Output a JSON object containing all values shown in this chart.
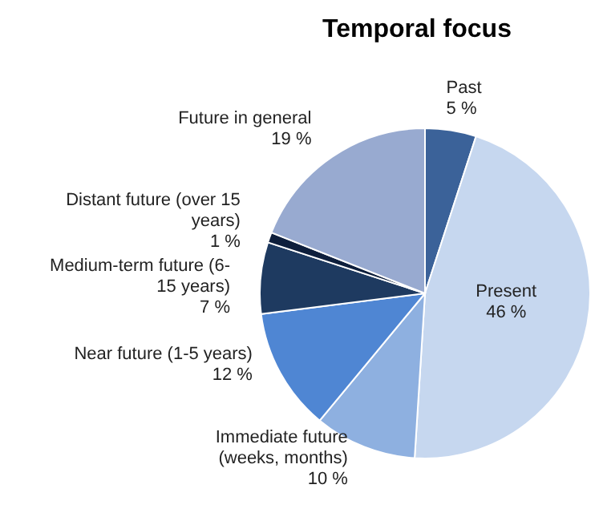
{
  "chart_data": {
    "type": "pie",
    "title": "Temporal focus",
    "categories": [
      "Past",
      "Present",
      "Immediate future (weeks, months)",
      "Near future (1-5 years)",
      "Medium-term future (6-15 years)",
      "Distant future (over 15 years)",
      "Future in general"
    ],
    "values": [
      5,
      46,
      10,
      12,
      7,
      1,
      19
    ],
    "colors": [
      "#3b6299",
      "#c6d7ef",
      "#8eb0e0",
      "#4f86d3",
      "#1e3a60",
      "#0e1f3c",
      "#98aad0"
    ],
    "value_labels": [
      "5 %",
      "46 %",
      "10 %",
      "12 %",
      "7 %",
      "1 %",
      "19 %"
    ],
    "legend": false
  }
}
